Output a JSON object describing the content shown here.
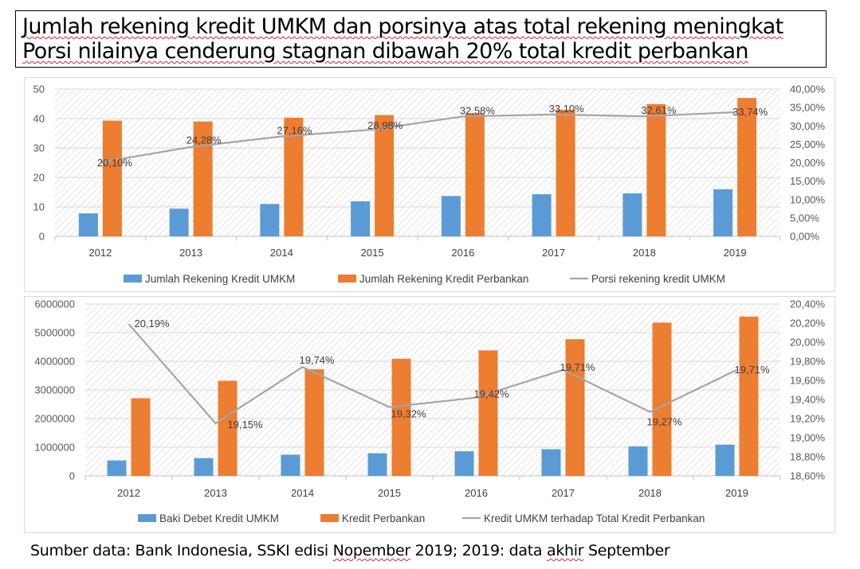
{
  "title": {
    "line1": "Jumlah rekening kredit UMKM dan porsinya atas total rekening meningkat",
    "line2": "Porsi nilainya cenderung stagnan dibawah 20% total kredit perbankan"
  },
  "source": {
    "prefix": "Sumber data: Bank Indonesia, SSKI edisi ",
    "month": "Nopember",
    "mid": " 2019; 2019: data ",
    "word": "akhir",
    "suffix": " September"
  },
  "colors": {
    "blue": "#5b9bd5",
    "orange": "#ed7d31",
    "gray": "#a5a5a5"
  },
  "chart_data": [
    {
      "type": "bar",
      "categories": [
        "2012",
        "2013",
        "2014",
        "2015",
        "2016",
        "2017",
        "2018",
        "2019"
      ],
      "ylim": [
        0,
        50
      ],
      "yticks": [
        "0",
        "10",
        "20",
        "30",
        "40",
        "50"
      ],
      "y2lim": [
        0,
        40
      ],
      "y2ticks": [
        "0,00%",
        "5,00%",
        "10,00%",
        "15,00%",
        "20,00%",
        "25,00%",
        "30,00%",
        "35,00%",
        "40,00%"
      ],
      "grid": true,
      "legend": "bottom",
      "series": [
        {
          "name": "Jumlah Rekening Kredit UMKM",
          "type": "bar",
          "color": "#5b9bd5",
          "values": [
            7.8,
            9.4,
            11.0,
            11.9,
            13.7,
            14.3,
            14.6,
            16.0
          ]
        },
        {
          "name": "Jumlah Rekening Kredit Perbankan",
          "type": "bar",
          "color": "#ed7d31",
          "values": [
            39.3,
            39.0,
            40.3,
            41.2,
            41.8,
            43.0,
            44.9,
            47.0
          ]
        },
        {
          "name": "Porsi rekening kredit UMKM",
          "type": "line",
          "axis": "secondary",
          "color": "#a5a5a5",
          "values": [
            20.1,
            24.28,
            27.16,
            28.98,
            32.58,
            33.1,
            32.61,
            33.74
          ],
          "labels": [
            "20,10%",
            "24,28%",
            "27,16%",
            "28,98%",
            "32,58%",
            "33,10%",
            "32,61%",
            "33,74%"
          ]
        }
      ]
    },
    {
      "type": "bar",
      "categories": [
        "2012",
        "2013",
        "2014",
        "2015",
        "2016",
        "2017",
        "2018",
        "2019"
      ],
      "ylim": [
        0,
        6000000
      ],
      "yticks": [
        "0",
        "1000000",
        "2000000",
        "3000000",
        "4000000",
        "5000000",
        "6000000"
      ],
      "y2lim": [
        18.6,
        20.4
      ],
      "y2ticks": [
        "18,60%",
        "18,80%",
        "19,00%",
        "19,20%",
        "19,40%",
        "19,60%",
        "19,80%",
        "20,00%",
        "20,20%",
        "20,40%"
      ],
      "grid": true,
      "legend": "bottom",
      "series": [
        {
          "name": "Baki Debet Kredit UMKM",
          "type": "bar",
          "color": "#5b9bd5",
          "values": [
            540000,
            620000,
            740000,
            790000,
            860000,
            930000,
            1030000,
            1090000
          ]
        },
        {
          "name": "Kredit Perbankan",
          "type": "bar",
          "color": "#ed7d31",
          "values": [
            2710000,
            3320000,
            3720000,
            4090000,
            4380000,
            4770000,
            5350000,
            5560000
          ]
        },
        {
          "name": "Kredit UMKM terhadap Total Kredit Perbankan",
          "type": "line",
          "axis": "secondary",
          "color": "#a5a5a5",
          "values": [
            20.19,
            19.15,
            19.74,
            19.32,
            19.42,
            19.71,
            19.27,
            19.71
          ],
          "labels": [
            "20,19%",
            "19,15%",
            "19,74%",
            "19,32%",
            "19,42%",
            "19,71%",
            "19,27%",
            "19,71%"
          ]
        }
      ]
    }
  ]
}
